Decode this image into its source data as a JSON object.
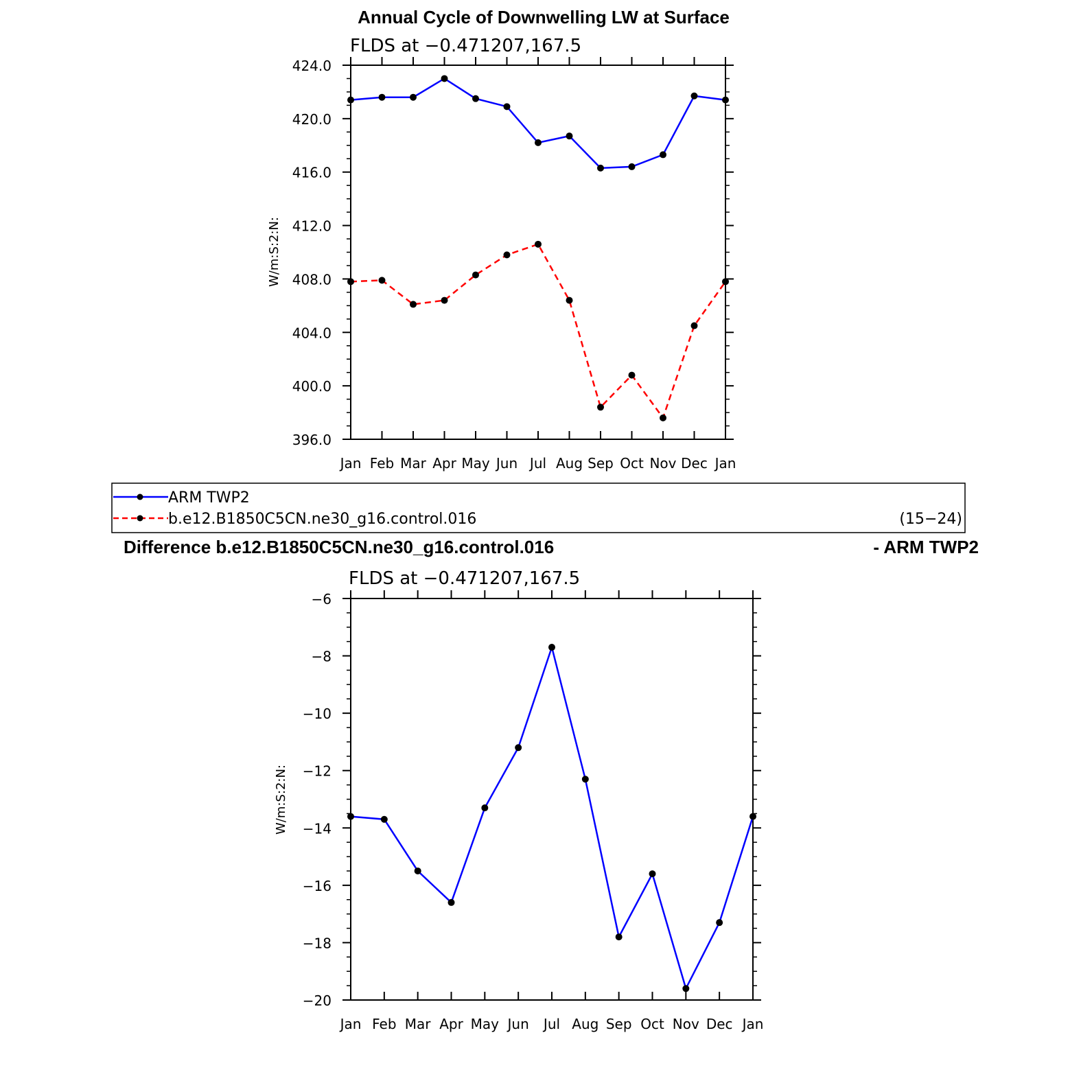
{
  "chart_data": [
    {
      "type": "line",
      "title": "Annual Cycle of Downwelling LW at Surface",
      "subtitle": "FLDS at −0.471207,167.5",
      "ylabel": "W/m:S:2:N:",
      "xlabel": "",
      "categories": [
        "Jan",
        "Feb",
        "Mar",
        "Apr",
        "May",
        "Jun",
        "Jul",
        "Aug",
        "Sep",
        "Oct",
        "Nov",
        "Dec",
        "Jan"
      ],
      "ylim": [
        396.0,
        424.0
      ],
      "yticks": [
        396.0,
        400.0,
        404.0,
        408.0,
        412.0,
        416.0,
        420.0,
        424.0
      ],
      "ytick_labels": [
        "396.0",
        "400.0",
        "404.0",
        "408.0",
        "412.0",
        "416.0",
        "420.0",
        "424.0"
      ],
      "grid": false,
      "series": [
        {
          "name": "ARM TWP2",
          "color": "#0000ff",
          "dash": "solid",
          "values": [
            421.4,
            421.6,
            421.6,
            423.0,
            421.5,
            420.9,
            418.2,
            418.7,
            416.3,
            416.4,
            417.3,
            421.7,
            421.4
          ]
        },
        {
          "name": "b.e12.B1850C5CN.ne30_g16.control.016",
          "color": "#ff0000",
          "dash": "dashed",
          "values": [
            407.8,
            407.9,
            406.1,
            406.4,
            408.3,
            409.8,
            410.6,
            406.4,
            398.4,
            400.8,
            397.6,
            404.5,
            407.8
          ]
        }
      ]
    },
    {
      "type": "line",
      "title_left": "Difference b.e12.B1850C5CN.ne30_g16.control.016",
      "title_right": "- ARM TWP2",
      "subtitle": "FLDS at −0.471207,167.5",
      "ylabel": "W/m:S:2:N:",
      "xlabel": "",
      "categories": [
        "Jan",
        "Feb",
        "Mar",
        "Apr",
        "May",
        "Jun",
        "Jul",
        "Aug",
        "Sep",
        "Oct",
        "Nov",
        "Dec",
        "Jan"
      ],
      "ylim": [
        -20,
        -6
      ],
      "yticks": [
        -20,
        -18,
        -16,
        -14,
        -12,
        -10,
        -8,
        -6
      ],
      "ytick_labels": [
        "−20",
        "−18",
        "−16",
        "−14",
        "−12",
        "−10",
        "−8",
        "−6"
      ],
      "grid": false,
      "series": [
        {
          "color": "#0000ff",
          "dash": "solid",
          "values": [
            -13.6,
            -13.7,
            -15.5,
            -16.6,
            -13.3,
            -11.2,
            -7.7,
            -12.3,
            -17.8,
            -15.6,
            -19.6,
            -17.3,
            -13.6
          ]
        }
      ]
    }
  ],
  "legend": {
    "entries": [
      {
        "label": "ARM TWP2",
        "color": "#0000ff",
        "dash": "solid"
      },
      {
        "label": "b.e12.B1850C5CN.ne30_g16.control.016",
        "color": "#ff0000",
        "dash": "dashed"
      }
    ],
    "note": "(15−24)"
  }
}
